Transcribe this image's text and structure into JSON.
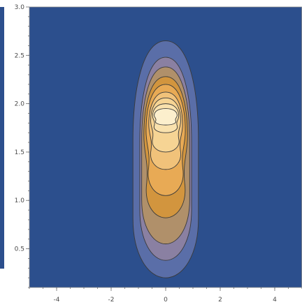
{
  "chart_data": {
    "type": "contour",
    "title": "",
    "xlabel": "",
    "ylabel": "",
    "xlim": [
      -5,
      5
    ],
    "ylim": [
      0.1,
      3.0
    ],
    "grid": false,
    "legend": "none",
    "x_ticks": [
      -4,
      -2,
      0,
      2,
      4
    ],
    "y_ticks": [
      0.5,
      1.0,
      1.5,
      2.0,
      2.5,
      3.0
    ],
    "x_tick_labels": [
      "-4",
      "-2",
      "0",
      "2",
      "4"
    ],
    "y_tick_labels": [
      "0.5",
      "1.0",
      "1.5",
      "2.0",
      "2.5",
      "3.0"
    ],
    "background_color": "#2c4f8d",
    "levels": [
      {
        "name": "level-1",
        "color": "#5a6ea8",
        "half_width": 1.2,
        "y_bottom": 0.2,
        "y_top": 2.65
      },
      {
        "name": "level-2",
        "color": "#8a80a2",
        "half_width": 0.95,
        "y_bottom": 0.38,
        "y_top": 2.48
      },
      {
        "name": "level-3",
        "color": "#b0906a",
        "half_width": 0.88,
        "y_bottom": 0.55,
        "y_top": 2.38
      },
      {
        "name": "level-4",
        "color": "#d2953e",
        "half_width": 0.8,
        "y_bottom": 0.82,
        "y_top": 2.28
      },
      {
        "name": "level-5",
        "color": "#e8aa55",
        "half_width": 0.72,
        "y_bottom": 1.05,
        "y_top": 2.2
      },
      {
        "name": "level-6",
        "color": "#f1c27a",
        "half_width": 0.62,
        "y_bottom": 1.32,
        "y_top": 2.12
      },
      {
        "name": "level-7",
        "color": "#f6d494",
        "half_width": 0.55,
        "y_bottom": 1.5,
        "y_top": 2.06
      },
      {
        "name": "level-8",
        "color": "#f9e1ad",
        "half_width": 0.48,
        "y_bottom": 1.7,
        "y_top": 2.0
      },
      {
        "name": "level-9",
        "color": "#fcefcd",
        "half_width": 0.42,
        "y_bottom": 1.78,
        "y_top": 1.95
      }
    ]
  }
}
